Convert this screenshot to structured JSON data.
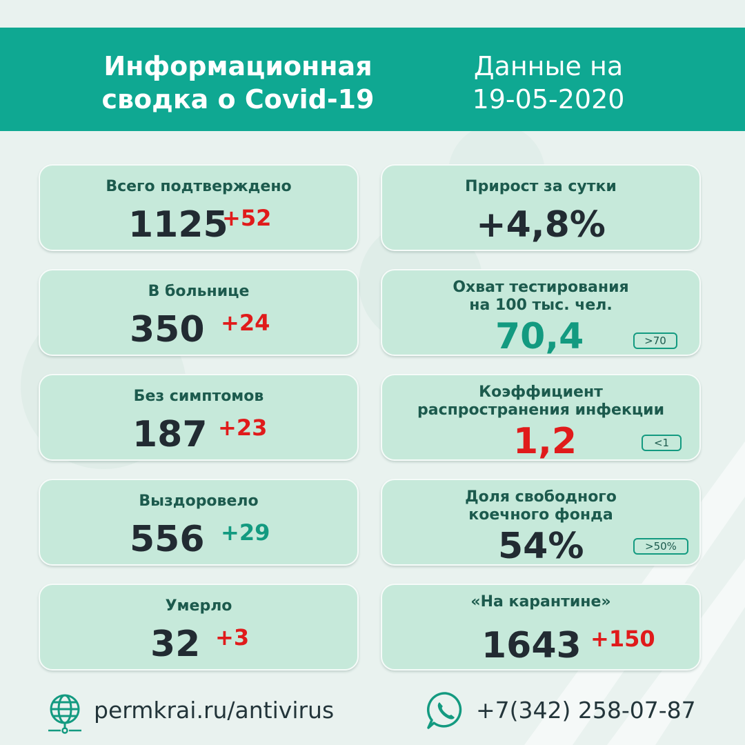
{
  "header": {
    "title_line1": "Информационная",
    "title_line2": "сводка о Covid-19",
    "date_line1": "Данные на",
    "date_line2": "19-05-2020"
  },
  "left_cards": [
    {
      "title": "Всего подтверждено",
      "value": "1125",
      "delta": "+52",
      "delta_color": "#e01b1b"
    },
    {
      "title": "В больнице",
      "value": "350",
      "delta": "+24",
      "delta_color": "#e01b1b"
    },
    {
      "title": "Без симптомов",
      "value": "187",
      "delta": "+23",
      "delta_color": "#e01b1b"
    },
    {
      "title": "Выздоровело",
      "value": "556",
      "delta": "+29",
      "delta_color": "#139a80"
    },
    {
      "title": "Умерло",
      "value": "32",
      "delta": "+3",
      "delta_color": "#e01b1b"
    }
  ],
  "right_cards": {
    "growth": {
      "title": "Прирост за сутки",
      "value": "+4,8%"
    },
    "testing": {
      "title_line1": "Охват тестирования",
      "title_line2": "на 100 тыс. чел.",
      "value": "70,4",
      "badge": ">70",
      "value_color": "#139a80"
    },
    "rate": {
      "title_line1": "Коэффициент",
      "title_line2": "распространения инфекции",
      "value": "1,2",
      "badge": "<1",
      "value_color": "#e01b1b"
    },
    "beds": {
      "title_line1": "Доля свободного",
      "title_line2": "коечного фонда",
      "value": "54%",
      "badge": ">50%"
    },
    "quarantine": {
      "title": "«На карантине»",
      "value": "1643",
      "delta": "+150"
    }
  },
  "footer": {
    "website": "permkrai.ru/antivirus",
    "phone": "+7(342) 258-07-87",
    "website_icon": "globe-icon",
    "phone_icon": "whatsapp-icon"
  },
  "colors": {
    "brand": "#0fa892",
    "card": "#c6e9da",
    "increase": "#e01b1b",
    "positive": "#139a80"
  }
}
